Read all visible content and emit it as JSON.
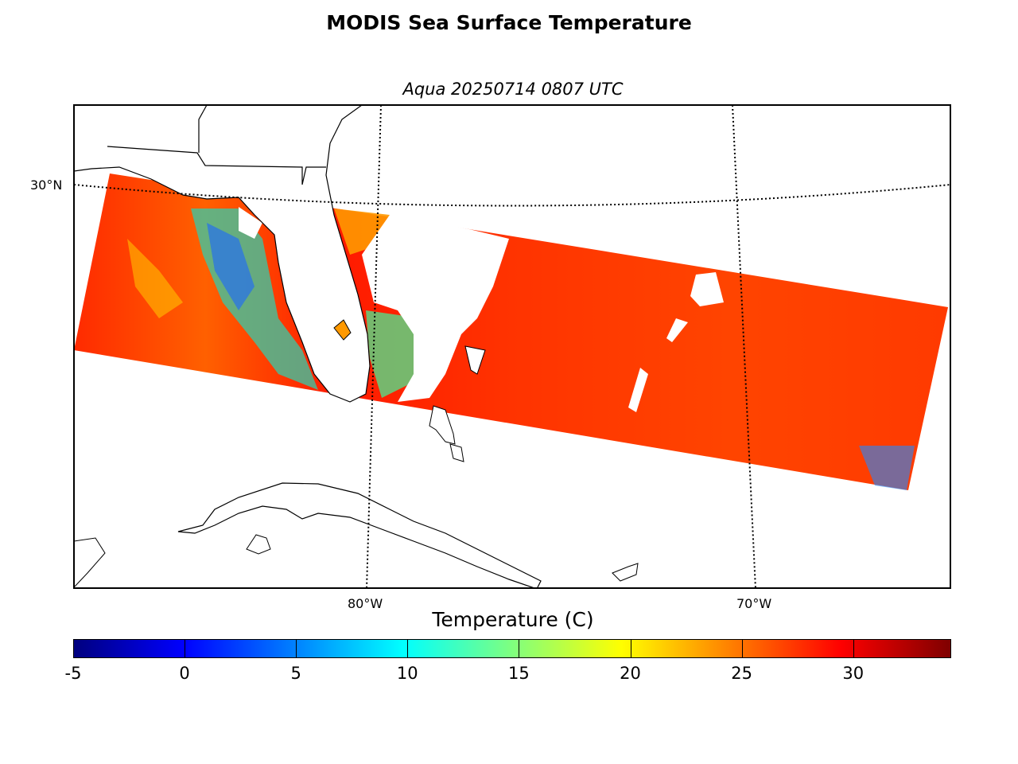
{
  "title": "MODIS Sea Surface Temperature",
  "subtitle": "Aqua 20250714 0807 UTC",
  "map": {
    "lat_labels": [
      "30°N"
    ],
    "lon_labels": [
      "80°W",
      "70°W"
    ]
  },
  "colorbar": {
    "title": "Temperature (C)",
    "min": -5,
    "max": 34.4,
    "ticks": [
      "-5",
      "0",
      "5",
      "10",
      "15",
      "20",
      "25",
      "30"
    ],
    "tick_values": [
      -5,
      0,
      5,
      10,
      15,
      20,
      25,
      30
    ],
    "colormap": "jet",
    "colors": [
      "#00007f",
      "#0000ff",
      "#007fff",
      "#00ffff",
      "#7fff7f",
      "#ffff00",
      "#ff7f00",
      "#ff0000",
      "#7f0000"
    ]
  }
}
